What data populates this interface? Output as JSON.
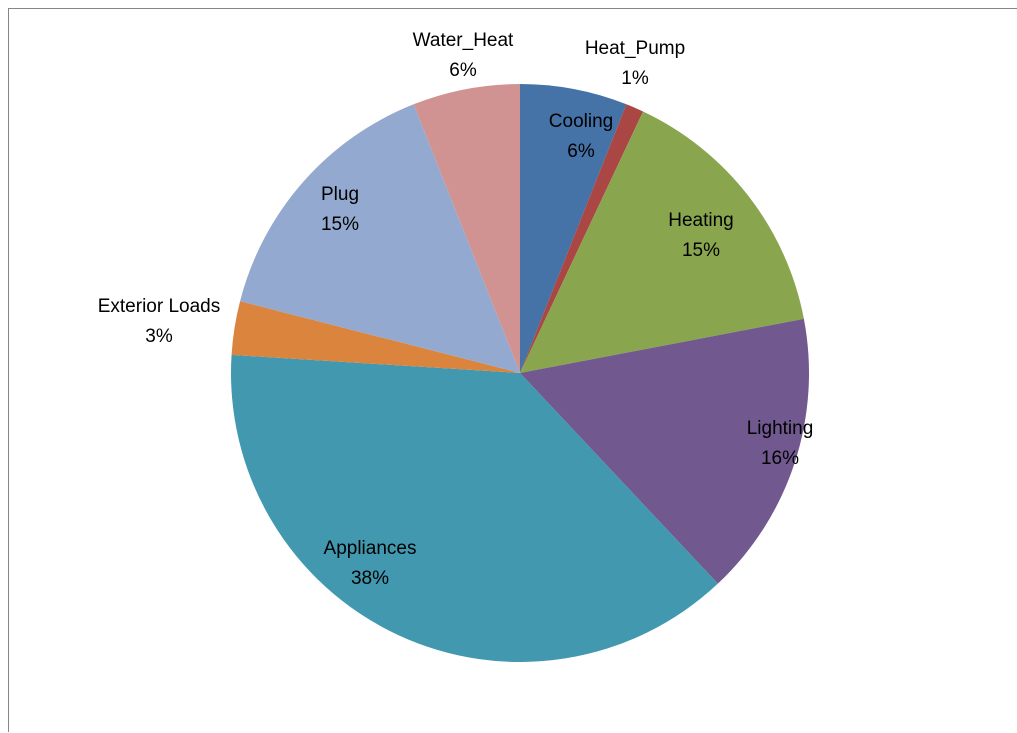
{
  "colors": {
    "Cooling": "#4572A7",
    "Heat_Pump": "#AA4643",
    "Heating": "#89A54E",
    "Lighting": "#71588F",
    "Appliances": "#4198AF",
    "Exterior Loads": "#DB843D",
    "Plug": "#93A9CF",
    "Water_Heat": "#D19392"
  },
  "chart_data": {
    "type": "pie",
    "start_angle_deg": 0,
    "direction": "clockwise",
    "slices": [
      {
        "label": "Cooling",
        "value": 6,
        "pct_label": "6%"
      },
      {
        "label": "Heat_Pump",
        "value": 1,
        "pct_label": "1%"
      },
      {
        "label": "Heating",
        "value": 15,
        "pct_label": "15%"
      },
      {
        "label": "Lighting",
        "value": 16,
        "pct_label": "16%"
      },
      {
        "label": "Appliances",
        "value": 38,
        "pct_label": "38%"
      },
      {
        "label": "Exterior Loads",
        "value": 3,
        "pct_label": "3%"
      },
      {
        "label": "Plug",
        "value": 15,
        "pct_label": "15%"
      },
      {
        "label": "Water_Heat",
        "value": 6,
        "pct_label": "6%"
      }
    ]
  }
}
